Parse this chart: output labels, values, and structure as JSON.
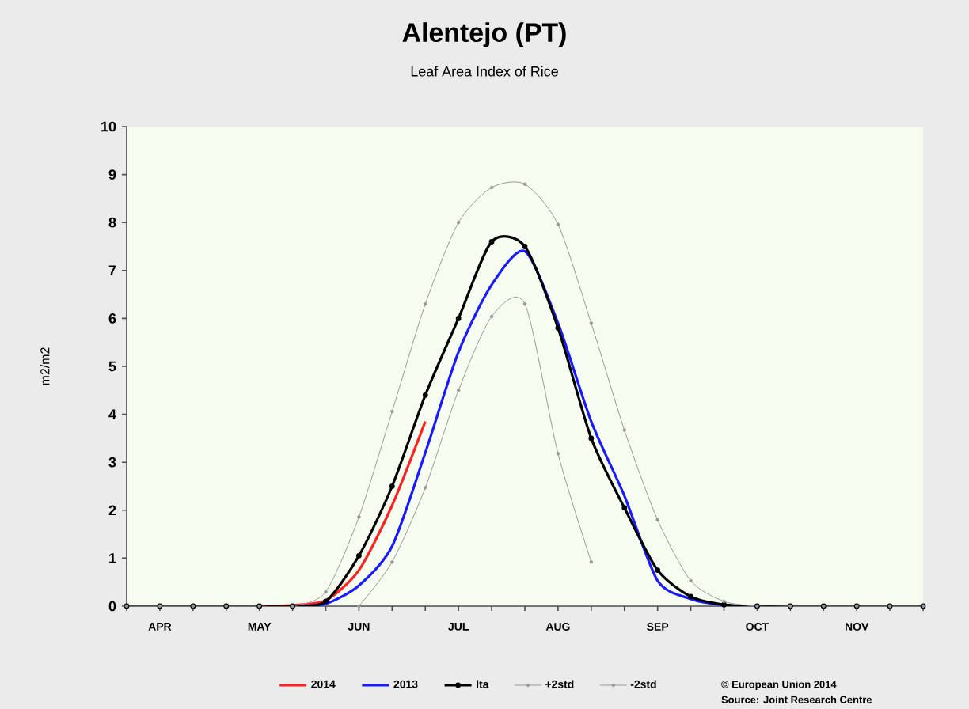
{
  "chart_data": {
    "type": "line",
    "title": "Alentejo (PT)",
    "subtitle": "Leaf Area Index of Rice",
    "ylabel": "m2/m2",
    "categories": [
      null,
      "APR",
      null,
      null,
      "MAY",
      null,
      null,
      "JUN",
      null,
      null,
      "JUL",
      null,
      null,
      "AUG",
      null,
      null,
      "SEP",
      null,
      null,
      "OCT",
      null,
      null,
      "NOV",
      null,
      null
    ],
    "ylim": [
      0,
      10
    ],
    "yticks": [
      0,
      1,
      2,
      3,
      4,
      5,
      6,
      7,
      8,
      9,
      10
    ],
    "legend": "bottom",
    "series": [
      {
        "name": "2014",
        "color": "#ff2020",
        "marker": "none",
        "values": [
          null,
          null,
          null,
          null,
          0,
          0.02,
          0.12,
          0.75,
          2.1,
          3.85,
          null,
          null,
          null,
          null,
          null,
          null,
          null,
          null,
          null,
          null,
          null,
          null,
          null,
          null,
          null
        ]
      },
      {
        "name": "2013",
        "color": "#1a1aff",
        "marker": "none",
        "values": [
          null,
          null,
          null,
          null,
          null,
          0,
          0.05,
          0.43,
          1.25,
          3.2,
          5.3,
          6.7,
          7.4,
          5.9,
          3.85,
          2.3,
          0.53,
          0.15,
          0.02,
          0,
          null,
          null,
          null,
          null,
          null
        ]
      },
      {
        "name": "lta",
        "color": "#000000",
        "marker": "circle",
        "values": [
          0,
          0,
          0,
          0,
          0,
          0,
          0.1,
          1.05,
          2.5,
          4.4,
          6.0,
          7.6,
          7.5,
          5.8,
          3.5,
          2.05,
          0.75,
          0.2,
          0.03,
          0,
          0,
          0,
          0,
          0,
          0
        ]
      },
      {
        "name": "+2std",
        "color": "#999999",
        "marker": "circle",
        "values": [
          0,
          0,
          0,
          0,
          0,
          0,
          0.3,
          1.86,
          4.06,
          6.3,
          8.0,
          8.73,
          8.8,
          7.96,
          5.9,
          3.67,
          1.8,
          0.53,
          0.1,
          0,
          0,
          0,
          0,
          0,
          0
        ]
      },
      {
        "name": "-2std",
        "color": "#999999",
        "marker": "circle",
        "values": [
          null,
          null,
          null,
          null,
          null,
          null,
          null,
          0,
          0.92,
          2.47,
          4.5,
          6.04,
          6.3,
          3.18,
          0.92,
          null,
          null,
          null,
          null,
          null,
          null,
          null,
          null,
          null,
          null
        ]
      }
    ],
    "annotations": [
      "© European Union 2014",
      "Source: Joint Research Centre"
    ]
  }
}
